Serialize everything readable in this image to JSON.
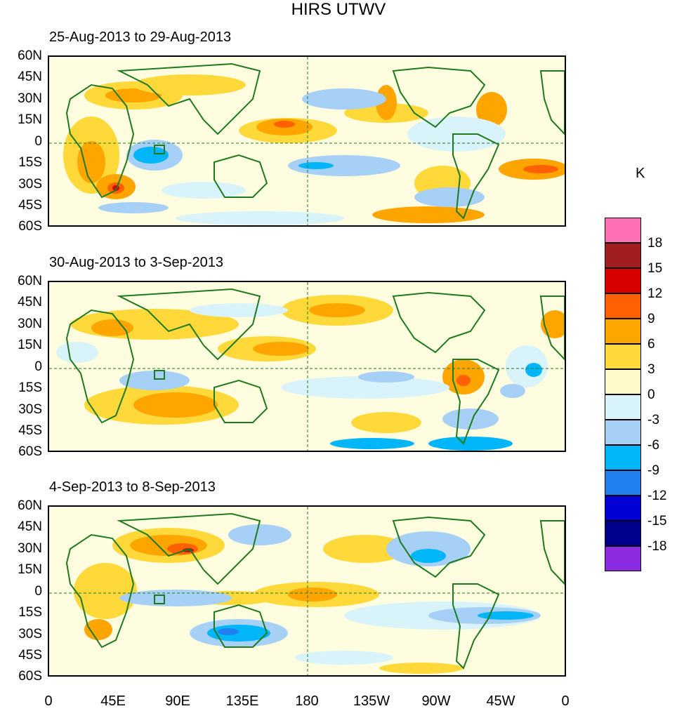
{
  "title": "HIRS UTWV",
  "panels": [
    {
      "label": "25-Aug-2013 to 29-Aug-2013"
    },
    {
      "label": "30-Aug-2013 to 3-Sep-2013"
    },
    {
      "label": "4-Sep-2013 to 8-Sep-2013"
    }
  ],
  "lat_labels": [
    "60N",
    "45N",
    "30N",
    "15N",
    "0",
    "15S",
    "30S",
    "45S",
    "60S"
  ],
  "lon_labels": [
    "0",
    "45E",
    "90E",
    "135E",
    "180",
    "135W",
    "90W",
    "45W",
    "0"
  ],
  "colorbar": {
    "unit": "K",
    "labels": [
      "18",
      "15",
      "12",
      "9",
      "6",
      "3",
      "0",
      "-3",
      "-6",
      "-9",
      "-12",
      "-15",
      "-18"
    ],
    "colors": [
      "#ff6fb4",
      "#a11e1e",
      "#d80000",
      "#ff6000",
      "#ffa500",
      "#ffd93a",
      "#fffbc8",
      "#d8f4fa",
      "#a6d0f6",
      "#00b6f8",
      "#2080f0",
      "#0000d6",
      "#00008e",
      "#8a2be2"
    ]
  },
  "colors": {
    "coast": "#1e7a1e",
    "background": "#fffde0"
  }
}
